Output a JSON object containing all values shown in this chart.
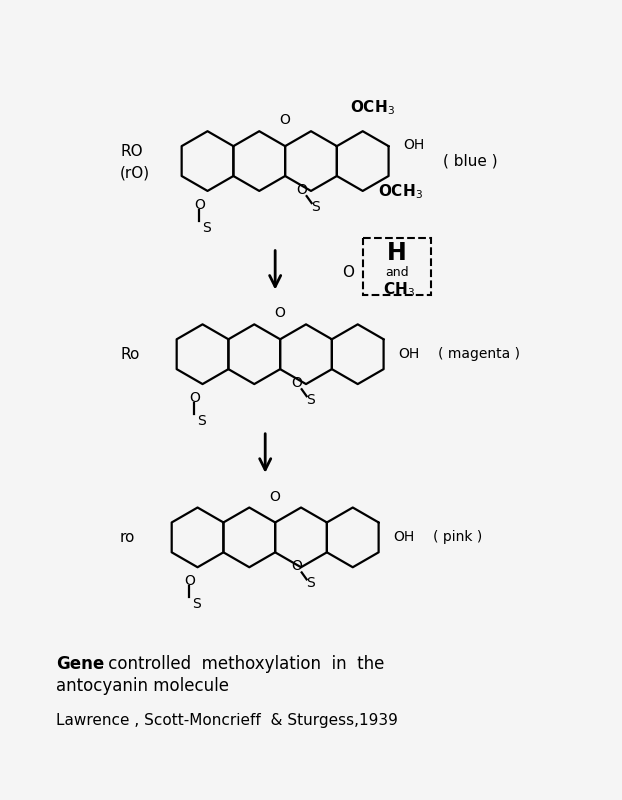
{
  "bg_color": "#f5f5f5",
  "title_line1_bold": "Gene",
  "title_line1_rest": " controlled  methoxylation  in  the",
  "title_line2": "antocyanin molecule",
  "citation": "Lawrence , Scott-Moncrieff  & Sturgess,1939",
  "label_top1": "RO",
  "label_top2": "(rO)",
  "label_mid": "Ro",
  "label_bot": "ro",
  "color_top": "( blue )",
  "color_mid": "( magenta )",
  "color_bot": "( pink )",
  "lw": 1.6
}
